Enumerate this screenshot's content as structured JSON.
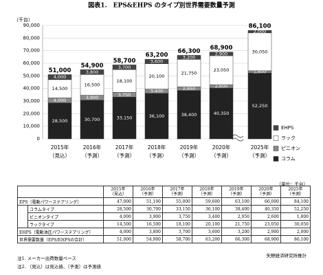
{
  "title": "図表1.　EPS&EHPS のタイプ別世界需要数量予測",
  "chart_data": {
    "type": "bar",
    "stacked": true,
    "y_axis_label": "（千台）",
    "categories": [
      "2015年",
      "2016年",
      "2017年",
      "2018年",
      "2019年",
      "2020年",
      "2025年"
    ],
    "category_sublabels": [
      "（見込）",
      "（予測）",
      "（予測）",
      "（予測）",
      "（予測）",
      "（予測）",
      "（予測）"
    ],
    "ylim": [
      0,
      90000
    ],
    "yticks": [
      0,
      {
        "value": 10000,
        "label": "10,000"
      },
      {
        "value": 20000,
        "label": "20,000"
      },
      {
        "value": 30000,
        "label": "30,000"
      },
      {
        "value": 40000,
        "label": "40,000"
      },
      {
        "value": 50000,
        "label": "50,000"
      },
      {
        "value": 60000,
        "label": "60,000"
      },
      {
        "value": 70000,
        "label": "70,000"
      },
      {
        "value": 80000,
        "label": "80,000"
      },
      {
        "value": 90000,
        "label": "90,000"
      }
    ],
    "grid": true,
    "legend": "right",
    "series": [
      {
        "name": "コラム",
        "color": "#222222",
        "values": [
          28500,
          30700,
          33150,
          36100,
          38400,
          40350,
          52250
        ],
        "value_labels": [
          "28,500",
          "30,700",
          "33,150",
          "36,100",
          "38,400",
          "40,350",
          "52,250"
        ]
      },
      {
        "name": "ピニオン",
        "color": "#8a8a8a",
        "values": [
          4000,
          3900,
          3750,
          3400,
          2950,
          2600,
          1800
        ],
        "value_labels": [
          "4,000",
          "3,900",
          "3,750",
          "3,400",
          "2,950",
          "2,600",
          "1,800"
        ]
      },
      {
        "name": "ラック",
        "color": "#ffffff",
        "values": [
          14500,
          16500,
          18100,
          20100,
          21750,
          23050,
          30050
        ],
        "value_labels": [
          "14,500",
          "16,500",
          "18,100",
          "20,100",
          "21,750",
          "23,050",
          "30,050"
        ]
      },
      {
        "name": "EHPS",
        "color": "#444444",
        "values": [
          4000,
          3800,
          3700,
          3600,
          3200,
          2900,
          2000
        ],
        "value_labels": [
          "4,000",
          "3,800",
          "3,700",
          "3,600",
          "3,200",
          "2,900",
          "2,000"
        ]
      }
    ],
    "totals": [
      51000,
      54900,
      58700,
      63200,
      66300,
      68900,
      86100
    ],
    "total_labels": [
      "51,000",
      "54,900",
      "58,700",
      "63,200",
      "66,300",
      "68,900",
      "86,100"
    ]
  },
  "table": {
    "unit": "（単位：千台）",
    "header": [
      [
        "2015年",
        "（見込）"
      ],
      [
        "2016年",
        "（予測）"
      ],
      [
        "2017年",
        "（予測）"
      ],
      [
        "2018年",
        "（予測）"
      ],
      [
        "2019年",
        "（予測）"
      ],
      [
        "2020年",
        "（予測）"
      ],
      [
        "2025年",
        "（予測）"
      ]
    ],
    "rows": [
      {
        "label": "EPS（電動パワーステアリング）",
        "values": [
          "47,000",
          "51,100",
          "55,000",
          "59,600",
          "63,100",
          "66,000",
          "84,100"
        ]
      },
      {
        "label": "コラムタイプ",
        "values": [
          "28,500",
          "30,700",
          "33,150",
          "36,100",
          "38,400",
          "40,350",
          "52,250"
        ]
      },
      {
        "label": "ピニオンタイプ",
        "values": [
          "4,000",
          "3,900",
          "3,750",
          "3,400",
          "2,950",
          "2,600",
          "1,800"
        ]
      },
      {
        "label": "ラックタイプ",
        "values": [
          "14,500",
          "16,500",
          "18,100",
          "20,100",
          "21,750",
          "23,050",
          "30,050"
        ]
      },
      {
        "label": "EHPS（電動油圧パワーステアリング）",
        "values": [
          "4,000",
          "3,800",
          "3,700",
          "3,600",
          "3,200",
          "2,900",
          "2,000"
        ]
      },
      {
        "label": "世界需要数量（EPS/EHPSの合計）",
        "values": [
          "51,000",
          "54,900",
          "58,700",
          "63,200",
          "66,300",
          "68,900",
          "86,100"
        ]
      }
    ]
  },
  "notes": [
    "注1. メーカー出荷数量ベース",
    "注2. （見込）は見込値、（予測）は予測値"
  ],
  "source": "矢野経済研究所推計"
}
